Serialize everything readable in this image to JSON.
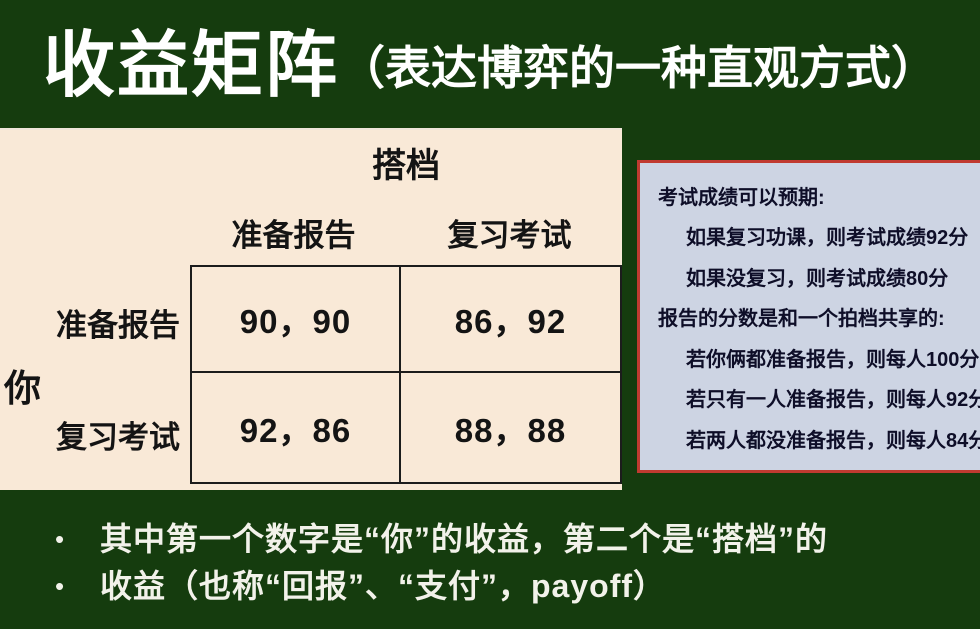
{
  "title": {
    "main": "收益矩阵",
    "sub": "（表达博弈的一种直观方式）"
  },
  "matrix": {
    "partner_label": "搭档",
    "you_label": "你",
    "col_headers": [
      "准备报告",
      "复习考试"
    ],
    "row_headers": [
      "准备报告",
      "复习考试"
    ],
    "cells": [
      [
        "90，90",
        "86，92"
      ],
      [
        "92，86",
        "88，88"
      ]
    ]
  },
  "info_panel": {
    "lines": [
      "考试成绩可以预期:",
      "如果复习功课，则考试成绩92分",
      "如果没复习，则考试成绩80分",
      "报告的分数是和一个拍档共享的:",
      "若你俩都准备报告，则每人100分",
      "若只有一人准备报告，则每人92分",
      "若两人都没准备报告，则每人84分"
    ]
  },
  "bullets": {
    "marker": "•",
    "items": [
      "其中第一个数字是“你”的收益，第二个是“搭档”的",
      "收益（也称“回报”、“支付”，payoff）"
    ]
  },
  "colors": {
    "background": "#153c0e",
    "matrix_bg": "#f9e9d7",
    "info_bg": "#cdd4e3",
    "info_border": "#c03a30",
    "info_text": "#0e0e28",
    "grid_line": "#1c1c1c",
    "title_text": "#ffffff",
    "bullet_text": "#f2f2ea",
    "cell_text": "#141414"
  }
}
